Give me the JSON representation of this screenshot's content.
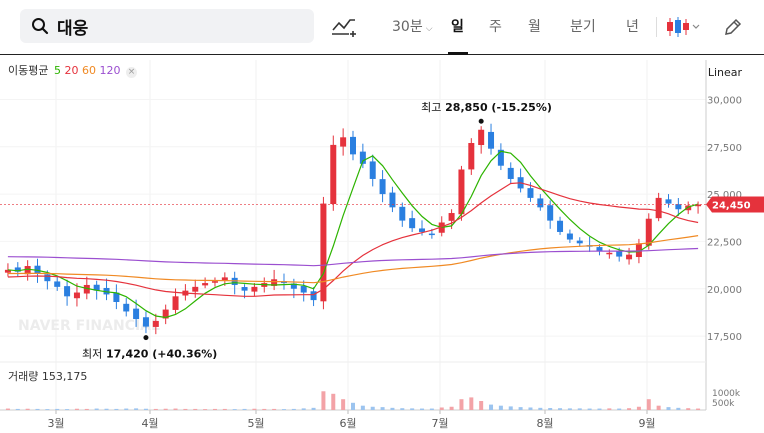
{
  "search": {
    "query": "대웅"
  },
  "toolbar": {
    "interval": "30분",
    "periods": [
      "일",
      "주",
      "월",
      "분기",
      "년"
    ],
    "active_period": "일"
  },
  "legend": {
    "ma_label": "이동평균",
    "ma_periods": [
      "5",
      "20",
      "60",
      "120"
    ],
    "ma_colors": [
      "#2db400",
      "#e5323c",
      "#f08a24",
      "#9b4fd0"
    ],
    "close_icon": "×",
    "scale": "Linear"
  },
  "price_axis": [
    "30,000",
    "27,500",
    "25,000",
    "22,500",
    "20,000",
    "17,500"
  ],
  "current_price": "24,450",
  "annotations": {
    "high_label": "최고",
    "high_value": "28,850 (-15.25%)",
    "low_label": "최저",
    "low_value": "17,420 (+40.36%)"
  },
  "watermark": "NAVER FINANCIAL",
  "volume": {
    "label": "거래량",
    "value": "153,175",
    "axis": [
      "1000k",
      "500k"
    ]
  },
  "x_axis": [
    "3월",
    "4월",
    "5월",
    "6월",
    "7월",
    "8월",
    "9월"
  ],
  "colors": {
    "up": "#e5323c",
    "down": "#2a7fe0",
    "accent": "#e5323c"
  },
  "chart_data": {
    "type": "candlestick",
    "ylim": [
      16500,
      30500
    ],
    "high": 28850,
    "low": 17420,
    "last": 24450,
    "months": [
      "3월",
      "4월",
      "5월",
      "6월",
      "7월",
      "8월",
      "9월"
    ],
    "close_path": [
      21000,
      20900,
      21200,
      20800,
      20400,
      20100,
      19600,
      19800,
      20200,
      19900,
      19700,
      19300,
      18800,
      18400,
      18000,
      18300,
      18900,
      19600,
      19900,
      20100,
      20300,
      20400,
      20600,
      20200,
      19900,
      20100,
      20300,
      20500,
      20300,
      20000,
      19800,
      19400,
      24500,
      27600,
      28000,
      27100,
      26600,
      25800,
      25000,
      24300,
      23600,
      23200,
      23000,
      22900,
      23500,
      24000,
      26300,
      27700,
      28400,
      27400,
      26500,
      25800,
      25300,
      24800,
      24300,
      23600,
      23000,
      22600,
      22400,
      22300,
      22000,
      21900,
      21700,
      21800,
      22400,
      23700,
      24800,
      24500,
      24200,
      24400,
      24450
    ],
    "volume_k": [
      40,
      30,
      35,
      30,
      25,
      30,
      25,
      35,
      30,
      40,
      35,
      30,
      40,
      45,
      35,
      30,
      35,
      40,
      30,
      30,
      25,
      30,
      30,
      25,
      30,
      35,
      30,
      30,
      25,
      30,
      45,
      60,
      520,
      450,
      300,
      200,
      120,
      90,
      80,
      60,
      50,
      45,
      40,
      40,
      70,
      90,
      300,
      350,
      250,
      150,
      120,
      100,
      80,
      70,
      60,
      55,
      50,
      45,
      45,
      40,
      40,
      45,
      40,
      50,
      90,
      300,
      120,
      80,
      60,
      50,
      40
    ]
  }
}
